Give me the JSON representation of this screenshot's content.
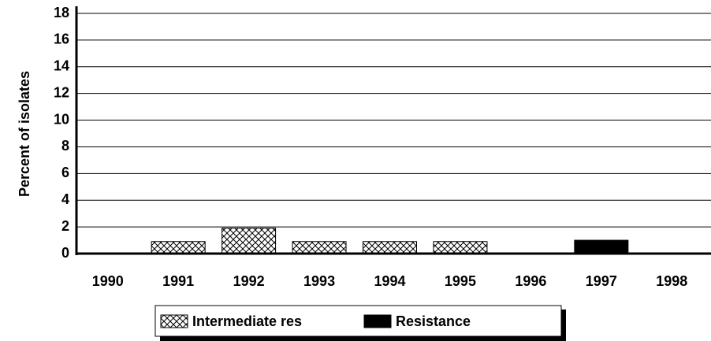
{
  "chart_data": {
    "type": "bar",
    "stacked": true,
    "y_label": "Percent of isolates",
    "categories": [
      "1990",
      "1991",
      "1992",
      "1993",
      "1994",
      "1995",
      "1996",
      "1997",
      "1998"
    ],
    "series": [
      {
        "name": "Intermediate res",
        "color": "#000000",
        "pattern": "crosshatch",
        "values": [
          0,
          0.9,
          1.9,
          0.9,
          0.9,
          0.9,
          0,
          0,
          0
        ]
      },
      {
        "name": "Resistance",
        "color": "#000000",
        "values": [
          0,
          0,
          0,
          0,
          0,
          0,
          0,
          1.0,
          0
        ]
      }
    ],
    "ylim": [
      0,
      18
    ],
    "yticks": [
      0,
      2,
      4,
      6,
      8,
      10,
      12,
      14,
      16,
      18
    ],
    "grid": true
  }
}
